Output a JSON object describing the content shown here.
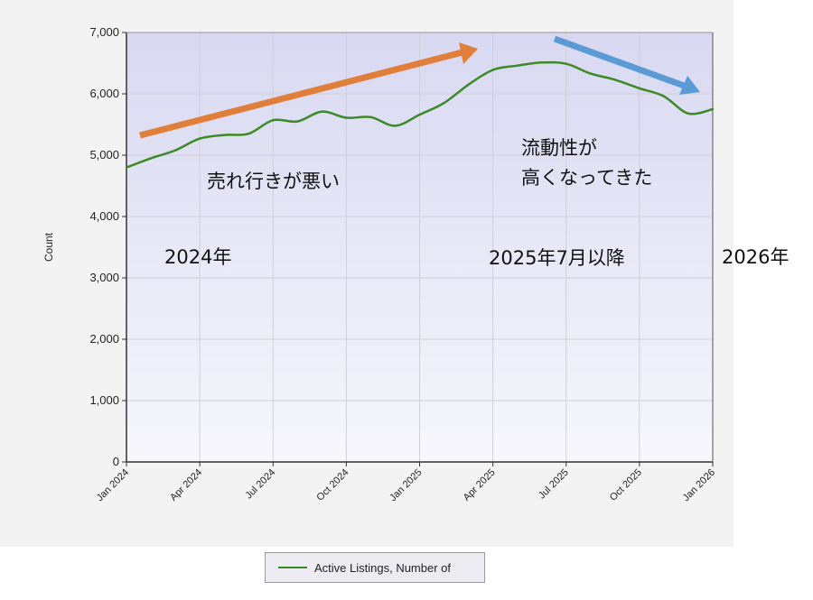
{
  "chart_data": {
    "type": "line",
    "title": "",
    "xlabel": "",
    "ylabel": "Count",
    "ylim": [
      0,
      7000
    ],
    "yticks": [
      "0",
      "1,000",
      "2,000",
      "3,000",
      "4,000",
      "5,000",
      "6,000",
      "7,000"
    ],
    "xticks": [
      "Jan 2024",
      "Apr 2024",
      "Jul 2024",
      "Oct 2024",
      "Jan 2025",
      "Apr 2025",
      "Jul 2025",
      "Oct 2025",
      "Jan 2026"
    ],
    "grid": true,
    "legend_position": "bottom",
    "series": [
      {
        "name": "Active Listings, Number of",
        "color": "#3c8a25",
        "x": [
          "2024-01",
          "2024-02",
          "2024-03",
          "2024-04",
          "2024-05",
          "2024-06",
          "2024-07",
          "2024-08",
          "2024-09",
          "2024-10",
          "2024-11",
          "2024-12",
          "2025-01",
          "2025-02",
          "2025-03",
          "2025-04",
          "2025-05",
          "2025-06",
          "2025-07",
          "2025-08",
          "2025-09",
          "2025-10",
          "2025-11",
          "2025-12",
          "2026-01"
        ],
        "values": [
          4800,
          4950,
          5080,
          5270,
          5330,
          5350,
          5570,
          5550,
          5710,
          5610,
          5620,
          5480,
          5660,
          5850,
          6150,
          6390,
          6460,
          6510,
          6490,
          6330,
          6230,
          6090,
          5960,
          5680,
          5750
        ]
      }
    ],
    "annotations": [
      {
        "id": "sluggish",
        "text": "売れ行きが悪い"
      },
      {
        "id": "liquidity-line1",
        "text": "流動性が"
      },
      {
        "id": "liquidity-line2",
        "text": "高くなってきた"
      },
      {
        "id": "y2024",
        "text": "2024年"
      },
      {
        "id": "after-jul-2025",
        "text": "2025年7月以降"
      },
      {
        "id": "y2026",
        "text": "2026年"
      }
    ],
    "trend_arrows": [
      {
        "id": "up-trend",
        "color": "#e07f3a"
      },
      {
        "id": "down-trend",
        "color": "#5b9bd5"
      }
    ]
  }
}
